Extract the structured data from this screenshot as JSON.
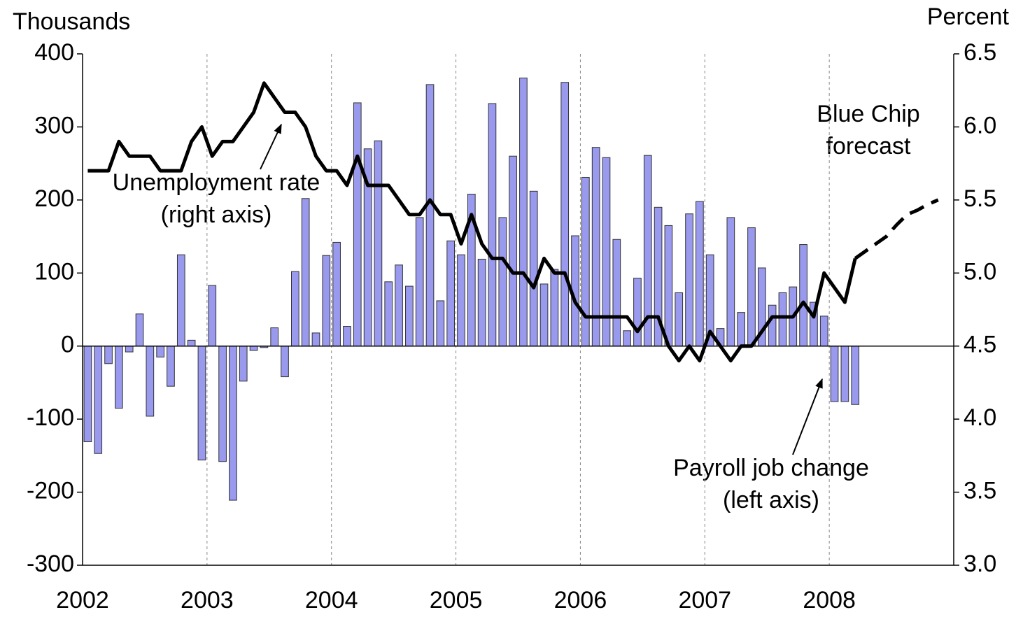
{
  "chart_data": {
    "type": "bar-line",
    "y_label": "Thousands",
    "y2_label": "Percent",
    "categories": [
      null,
      null,
      null,
      null,
      null,
      null,
      null,
      null,
      null,
      null,
      null,
      null,
      null,
      null,
      null,
      null,
      null,
      null,
      null,
      null,
      null,
      null,
      null,
      null,
      null,
      null,
      null,
      null,
      null,
      null,
      null,
      null,
      null,
      null,
      null,
      null,
      null,
      null,
      null,
      null,
      null,
      null,
      null,
      null,
      null,
      null,
      null,
      null,
      null,
      null,
      null,
      null,
      null,
      null,
      null,
      null,
      null,
      null,
      null,
      null,
      null,
      null,
      null,
      null,
      null,
      null,
      null,
      null,
      null,
      null,
      null,
      null,
      null,
      null,
      null,
      null,
      null,
      null,
      null,
      null,
      null,
      null,
      null,
      null
    ],
    "xlim": [
      2002,
      2009
    ],
    "xticks": [
      2002,
      2003,
      2004,
      2005,
      2006,
      2007,
      2008
    ],
    "ylim": [
      -300,
      400
    ],
    "yticks": [
      -300,
      -200,
      -100,
      0,
      100,
      200,
      300,
      400
    ],
    "y2lim": [
      3.0,
      6.5
    ],
    "y2ticks": [
      {
        "value": 3.0,
        "label": "3.0"
      },
      3.5,
      {
        "value": 4.0,
        "label": "4.0"
      },
      4.5,
      {
        "value": 5.0,
        "label": "5.0"
      },
      5.5,
      {
        "value": 6.0,
        "label": "6.0"
      },
      6.5
    ],
    "series": [
      {
        "name": "Payroll job change",
        "kind": "bar",
        "color": "#9999ee",
        "values": [
          -131,
          -147,
          -24,
          -85,
          -8,
          44,
          -96,
          -15,
          -55,
          125,
          8,
          -156,
          83,
          -158,
          -211,
          -48,
          -6,
          -2,
          25,
          -42,
          102,
          202,
          18,
          124,
          142,
          27,
          333,
          270,
          281,
          88,
          111,
          82,
          176,
          358,
          62,
          144,
          125,
          208,
          119,
          332,
          176,
          260,
          367,
          212,
          85,
          105,
          361,
          151,
          231,
          272,
          258,
          146,
          21,
          93,
          261,
          190,
          165,
          73,
          181,
          198,
          125,
          24,
          176,
          46,
          162,
          107,
          56,
          73,
          81,
          139,
          60,
          41,
          -76,
          -76,
          -80,
          null,
          null,
          null,
          null,
          null,
          null,
          null,
          null,
          null
        ]
      },
      {
        "name": "Unemployment rate",
        "kind": "line",
        "axis": "y2",
        "color": "#000000",
        "values": [
          5.7,
          5.7,
          5.7,
          5.9,
          5.8,
          5.8,
          5.8,
          5.7,
          5.7,
          5.7,
          5.9,
          6.0,
          5.8,
          5.9,
          5.9,
          6.0,
          6.1,
          6.3,
          6.2,
          6.1,
          6.1,
          6.0,
          5.8,
          5.7,
          5.7,
          5.6,
          5.8,
          5.6,
          5.6,
          5.6,
          5.5,
          5.4,
          5.4,
          5.5,
          5.4,
          5.4,
          5.2,
          5.4,
          5.2,
          5.1,
          5.1,
          5.0,
          5.0,
          4.9,
          5.1,
          5.0,
          5.0,
          4.8,
          4.7,
          4.7,
          4.7,
          4.7,
          4.7,
          4.6,
          4.7,
          4.7,
          4.5,
          4.4,
          4.5,
          4.4,
          4.6,
          4.5,
          4.4,
          4.5,
          4.5,
          4.6,
          4.7,
          4.7,
          4.7,
          4.8,
          4.7,
          5.0,
          4.9,
          4.8,
          5.1,
          null,
          null,
          null,
          null,
          null,
          null,
          null,
          null,
          null
        ]
      },
      {
        "name": "Blue Chip forecast",
        "kind": "dashed",
        "axis": "y2",
        "color": "#000000",
        "values": [
          null,
          null,
          null,
          null,
          null,
          null,
          null,
          null,
          null,
          null,
          null,
          null,
          null,
          null,
          null,
          null,
          null,
          null,
          null,
          null,
          null,
          null,
          null,
          null,
          null,
          null,
          null,
          null,
          null,
          null,
          null,
          null,
          null,
          null,
          null,
          null,
          null,
          null,
          null,
          null,
          null,
          null,
          null,
          null,
          null,
          null,
          null,
          null,
          null,
          null,
          null,
          null,
          null,
          null,
          null,
          null,
          null,
          null,
          null,
          null,
          null,
          null,
          null,
          null,
          null,
          null,
          null,
          null,
          null,
          null,
          null,
          null,
          null,
          null,
          5.1,
          5.15,
          5.2,
          5.25,
          5.33,
          5.4,
          5.43,
          5.47,
          5.5,
          null
        ]
      }
    ],
    "annotations": [
      {
        "lines": [
          "Unemployment rate",
          "(right axis)"
        ]
      },
      {
        "lines": [
          "Blue Chip",
          "forecast"
        ]
      },
      {
        "lines": [
          "Payroll job change",
          "(left axis)"
        ]
      }
    ]
  }
}
